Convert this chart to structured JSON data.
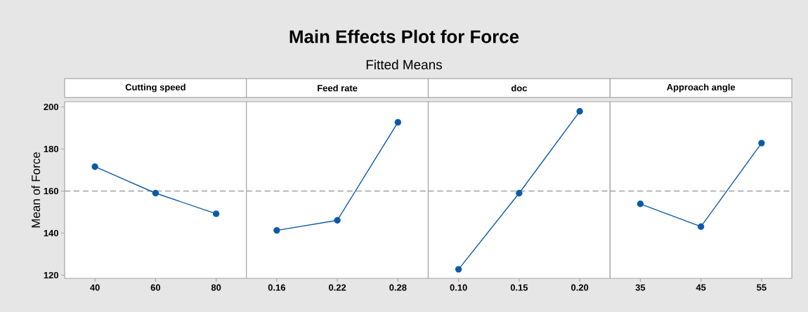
{
  "chart_data": [
    {
      "type": "other",
      "title": "Main Effects Plot for Force",
      "subtitle": "Fitted Means"
    },
    {
      "type": "line",
      "title": "Cutting speed",
      "ylabel": "Mean of Force",
      "categories": [
        "40",
        "60",
        "80"
      ],
      "values": [
        171.6,
        159.0,
        149.2
      ],
      "color": "#0b5aa6",
      "marker": "circle",
      "line_style": "solid",
      "ylim": [
        118.5,
        202.5
      ],
      "yticks": [
        120,
        140,
        160,
        180,
        200
      ],
      "ref_lines": [
        {
          "axis": "y",
          "value": 160,
          "color": "#a0a0a0",
          "line_style": "dashed"
        }
      ]
    },
    {
      "type": "line",
      "title": "Feed rate",
      "categories": [
        "0.16",
        "0.22",
        "0.28"
      ],
      "values": [
        141.3,
        146.1,
        192.7
      ],
      "color": "#0b5aa6",
      "marker": "circle",
      "line_style": "solid",
      "ylim": [
        118.5,
        202.5
      ],
      "yticks": [
        120,
        140,
        160,
        180,
        200
      ],
      "tick_labels": "x",
      "ref_lines": [
        {
          "axis": "y",
          "value": 160,
          "color": "#a0a0a0",
          "line_style": "dashed"
        }
      ]
    },
    {
      "type": "line",
      "title": "doc",
      "categories": [
        "0.10",
        "0.15",
        "0.20"
      ],
      "values": [
        122.8,
        159.0,
        197.9
      ],
      "color": "#0b5aa6",
      "marker": "circle",
      "line_style": "solid",
      "ylim": [
        118.5,
        202.5
      ],
      "yticks": [
        120,
        140,
        160,
        180,
        200
      ],
      "tick_labels": "x",
      "ref_lines": [
        {
          "axis": "y",
          "value": 160,
          "color": "#a0a0a0",
          "line_style": "dashed"
        }
      ]
    },
    {
      "type": "line",
      "title": "Approach angle",
      "categories": [
        "35",
        "45",
        "55"
      ],
      "values": [
        153.9,
        143.1,
        182.8
      ],
      "color": "#0b5aa6",
      "marker": "circle",
      "line_style": "solid",
      "ylim": [
        118.5,
        202.5
      ],
      "yticks": [
        120,
        140,
        160,
        180,
        200
      ],
      "tick_labels": "x",
      "ref_lines": [
        {
          "axis": "y",
          "value": 160,
          "color": "#a0a0a0",
          "line_style": "dashed"
        }
      ]
    }
  ]
}
